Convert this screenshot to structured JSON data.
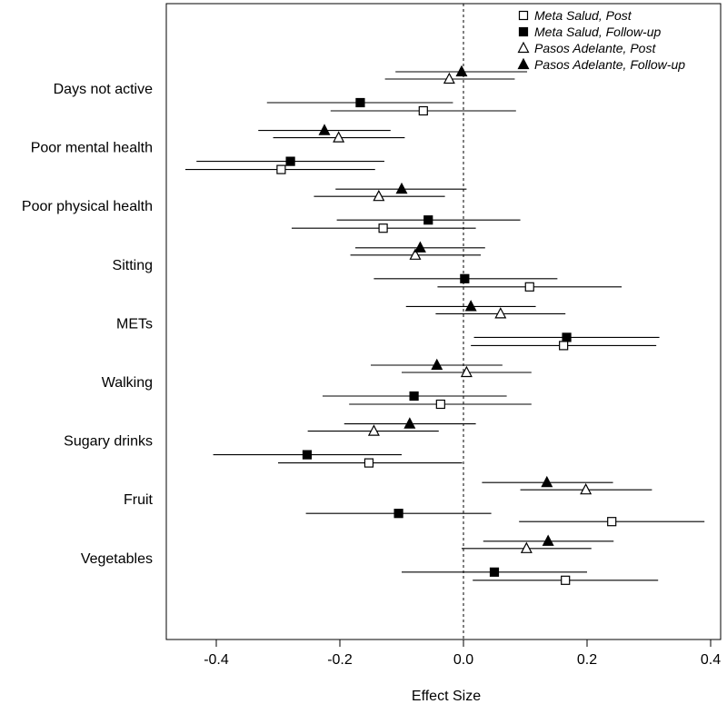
{
  "chart_data": {
    "type": "forest",
    "xlabel": "Effect Size",
    "xlim": [
      -0.48,
      0.42
    ],
    "xticks": [
      -0.4,
      -0.2,
      0.0,
      0.2,
      0.4
    ],
    "xtick_labels": [
      "-0.4",
      "-0.2",
      "0.0",
      "0.2",
      "0.4"
    ],
    "reference_line": 0,
    "legend_position": "top-right",
    "categories": [
      "Days not active",
      "Poor mental health",
      "Poor physical health",
      "Sitting",
      "METs",
      "Walking",
      "Sugary drinks",
      "Fruit",
      "Vegetables"
    ],
    "series": [
      {
        "name": "Meta Salud, Post",
        "marker": "open-square",
        "points": [
          {
            "est": -0.065,
            "lo": -0.215,
            "hi": 0.085
          },
          {
            "est": -0.295,
            "lo": -0.45,
            "hi": -0.143
          },
          {
            "est": -0.13,
            "lo": -0.278,
            "hi": 0.02
          },
          {
            "est": 0.107,
            "lo": -0.042,
            "hi": 0.256
          },
          {
            "est": 0.162,
            "lo": 0.012,
            "hi": 0.312
          },
          {
            "est": -0.037,
            "lo": -0.185,
            "hi": 0.11
          },
          {
            "est": -0.153,
            "lo": -0.3,
            "hi": -0.002
          },
          {
            "est": 0.24,
            "lo": 0.09,
            "hi": 0.39
          },
          {
            "est": 0.165,
            "lo": 0.015,
            "hi": 0.315
          }
        ]
      },
      {
        "name": "Meta Salud, Follow-up",
        "marker": "filled-square",
        "points": [
          {
            "est": -0.167,
            "lo": -0.318,
            "hi": -0.017
          },
          {
            "est": -0.28,
            "lo": -0.432,
            "hi": -0.128
          },
          {
            "est": -0.057,
            "lo": -0.205,
            "hi": 0.092
          },
          {
            "est": 0.002,
            "lo": -0.145,
            "hi": 0.152
          },
          {
            "est": 0.167,
            "lo": 0.017,
            "hi": 0.317
          },
          {
            "est": -0.08,
            "lo": -0.228,
            "hi": 0.07
          },
          {
            "est": -0.253,
            "lo": -0.405,
            "hi": -0.1
          },
          {
            "est": -0.105,
            "lo": -0.255,
            "hi": 0.045
          },
          {
            "est": 0.05,
            "lo": -0.1,
            "hi": 0.2
          }
        ]
      },
      {
        "name": "Pasos Adelante, Post",
        "marker": "open-triangle",
        "points": [
          {
            "est": -0.023,
            "lo": -0.127,
            "hi": 0.083
          },
          {
            "est": -0.202,
            "lo": -0.308,
            "hi": -0.095
          },
          {
            "est": -0.137,
            "lo": -0.242,
            "hi": -0.03
          },
          {
            "est": -0.078,
            "lo": -0.183,
            "hi": 0.028
          },
          {
            "est": 0.06,
            "lo": -0.045,
            "hi": 0.165
          },
          {
            "est": 0.005,
            "lo": -0.1,
            "hi": 0.11
          },
          {
            "est": -0.145,
            "lo": -0.252,
            "hi": -0.04
          },
          {
            "est": 0.198,
            "lo": 0.092,
            "hi": 0.305
          },
          {
            "est": 0.102,
            "lo": -0.003,
            "hi": 0.207
          }
        ]
      },
      {
        "name": "Pasos Adelante, Follow-up",
        "marker": "filled-triangle",
        "points": [
          {
            "est": -0.003,
            "lo": -0.11,
            "hi": 0.103
          },
          {
            "est": -0.225,
            "lo": -0.332,
            "hi": -0.118
          },
          {
            "est": -0.1,
            "lo": -0.207,
            "hi": 0.005
          },
          {
            "est": -0.07,
            "lo": -0.175,
            "hi": 0.035
          },
          {
            "est": 0.012,
            "lo": -0.093,
            "hi": 0.117
          },
          {
            "est": -0.043,
            "lo": -0.15,
            "hi": 0.063
          },
          {
            "est": -0.087,
            "lo": -0.193,
            "hi": 0.02
          },
          {
            "est": 0.135,
            "lo": 0.03,
            "hi": 0.242
          },
          {
            "est": 0.137,
            "lo": 0.032,
            "hi": 0.243
          }
        ]
      }
    ]
  }
}
